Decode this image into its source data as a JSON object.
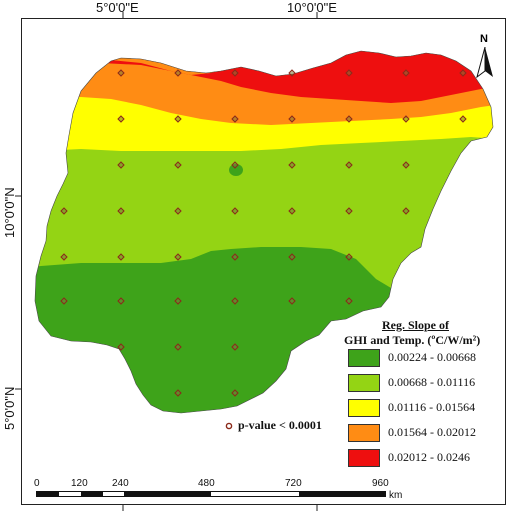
{
  "graticule": {
    "lon_labels": [
      "5°0'0\"E",
      "10°0'0\"E"
    ],
    "lat_labels": [
      "10°0'0\"N",
      "5°0'0\"N"
    ]
  },
  "north_arrow": {
    "label": "N",
    "icon": "north-arrow-icon"
  },
  "legend": {
    "title_line1": "Reg. Slope of",
    "title_line2": "GHI and Temp. (ºC/W/m²)",
    "classes": [
      {
        "label": "0.00224 - 0.00668",
        "color": "#3ea31a"
      },
      {
        "label": "0.00668 - 0.01116",
        "color": "#94d414"
      },
      {
        "label": "0.01116 - 0.01564",
        "color": "#ffff00"
      },
      {
        "label": "0.01564 - 0.02012",
        "color": "#ff8c14"
      },
      {
        "label": "0.02012 - 0.0246",
        "color": "#ee0f0f"
      }
    ]
  },
  "significance": {
    "label": "p-value < 0.0001",
    "marker_color": "#8b2a1a"
  },
  "scale_bar": {
    "ticks": [
      "0",
      "120",
      "240",
      "480",
      "720",
      "960"
    ],
    "unit": "km"
  }
}
